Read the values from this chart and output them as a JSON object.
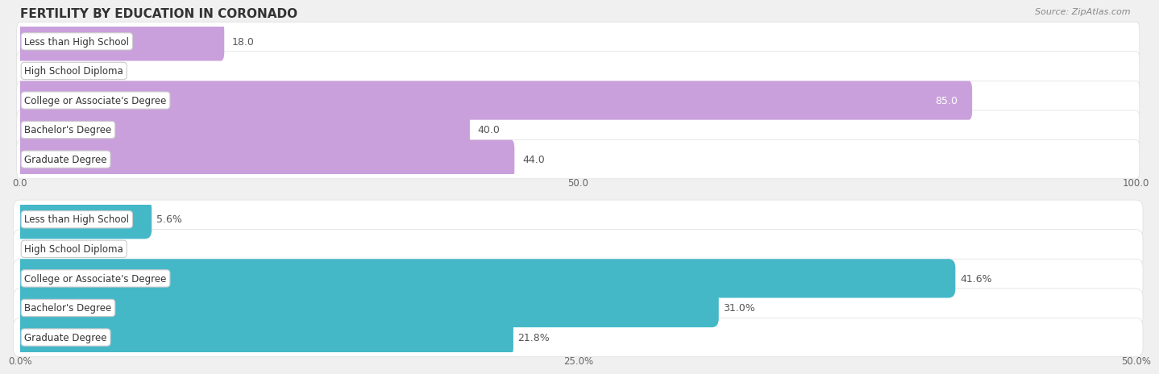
{
  "title": "FERTILITY BY EDUCATION IN CORONADO",
  "source": "Source: ZipAtlas.com",
  "top_chart": {
    "categories": [
      "Less than High School",
      "High School Diploma",
      "College or Associate's Degree",
      "Bachelor's Degree",
      "Graduate Degree"
    ],
    "values": [
      18.0,
      0.0,
      85.0,
      40.0,
      44.0
    ],
    "xlim": [
      0,
      100
    ],
    "xticks": [
      0.0,
      50.0,
      100.0
    ],
    "xtick_labels": [
      "0.0",
      "50.0",
      "100.0"
    ],
    "bar_color": "#c9a0dc",
    "label_inside_threshold": 80
  },
  "bottom_chart": {
    "categories": [
      "Less than High School",
      "High School Diploma",
      "College or Associate's Degree",
      "Bachelor's Degree",
      "Graduate Degree"
    ],
    "values": [
      5.6,
      0.0,
      41.6,
      31.0,
      21.8
    ],
    "xlim": [
      0,
      50
    ],
    "xticks": [
      0.0,
      25.0,
      50.0
    ],
    "xtick_labels": [
      "0.0%",
      "25.0%",
      "50.0%"
    ],
    "bar_color": "#45b8c8",
    "label_inside_threshold": 99,
    "show_pct": true
  },
  "background_color": "#f0f0f0",
  "bar_bg_color": "#ffffff",
  "grid_color": "#cccccc",
  "cat_label_fontsize": 8.5,
  "val_label_fontsize": 9,
  "tick_fontsize": 8.5,
  "title_fontsize": 11,
  "bar_height": 0.72,
  "bar_gap": 0.28
}
